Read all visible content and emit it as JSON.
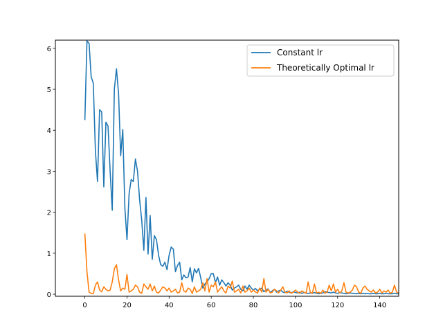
{
  "chart_data": {
    "type": "line",
    "title": "",
    "xlabel": "",
    "ylabel": "",
    "xlim": [
      -14,
      149
    ],
    "ylim": [
      -0.05,
      6.2
    ],
    "xticks": [
      0,
      20,
      40,
      60,
      80,
      100,
      120,
      140
    ],
    "yticks": [
      0,
      1,
      2,
      3,
      4,
      5,
      6
    ],
    "xtick_labels": [
      "0",
      "20",
      "40",
      "60",
      "80",
      "100",
      "120",
      "140"
    ],
    "ytick_labels": [
      "0",
      "1",
      "2",
      "3",
      "4",
      "5",
      "6"
    ],
    "grid": false,
    "legend": {
      "position": "top-right",
      "entries": [
        "Constant lr",
        "Theoretically Optimal lr"
      ]
    },
    "series": [
      {
        "name": "Constant lr",
        "color": "#1f77b4",
        "x": [
          0,
          1,
          2,
          3,
          4,
          5,
          6,
          7,
          8,
          9,
          10,
          11,
          12,
          13,
          14,
          15,
          16,
          17,
          18,
          19,
          20,
          21,
          22,
          23,
          24,
          25,
          26,
          27,
          28,
          29,
          30,
          31,
          32,
          33,
          34,
          35,
          36,
          37,
          38,
          39,
          40,
          41,
          42,
          43,
          44,
          45,
          46,
          47,
          48,
          49,
          50,
          51,
          52,
          53,
          54,
          55,
          56,
          57,
          58,
          59,
          60,
          61,
          62,
          63,
          64,
          65,
          66,
          67,
          68,
          69,
          70,
          71,
          72,
          73,
          74,
          75,
          76,
          77,
          78,
          79,
          80,
          81,
          82,
          83,
          84,
          85,
          86,
          87,
          88,
          89,
          90,
          91,
          92,
          93,
          94,
          95,
          96,
          97,
          98,
          99,
          100,
          101,
          102,
          103,
          104,
          105,
          106,
          107,
          108,
          109,
          110,
          111,
          112,
          113,
          114,
          115,
          116,
          117,
          118,
          119,
          120,
          121,
          122,
          123,
          124,
          125,
          126,
          127,
          128,
          129,
          130,
          131,
          132,
          133,
          134,
          135,
          136,
          137,
          138,
          139,
          140,
          141,
          142,
          143,
          144,
          145,
          146,
          147,
          148,
          149
        ],
        "y": [
          4.25,
          6.18,
          6.12,
          5.3,
          5.15,
          3.5,
          2.75,
          4.5,
          4.45,
          2.62,
          4.2,
          4.1,
          3.0,
          2.05,
          5.0,
          5.5,
          4.9,
          3.38,
          4.02,
          2.1,
          1.33,
          2.45,
          2.8,
          2.75,
          3.3,
          3.0,
          2.3,
          1.8,
          1.07,
          2.36,
          0.98,
          1.92,
          0.85,
          1.43,
          1.33,
          0.95,
          0.72,
          0.68,
          0.78,
          0.6,
          0.95,
          1.15,
          1.1,
          0.55,
          0.7,
          0.78,
          0.35,
          0.47,
          0.4,
          0.42,
          0.65,
          0.3,
          0.62,
          0.52,
          0.63,
          0.4,
          0.15,
          0.25,
          0.3,
          0.38,
          0.5,
          0.5,
          0.28,
          0.42,
          0.22,
          0.35,
          0.28,
          0.2,
          0.28,
          0.22,
          0.1,
          0.15,
          0.18,
          0.22,
          0.12,
          0.08,
          0.2,
          0.12,
          0.22,
          0.15,
          0.1,
          0.14,
          0.08,
          0.12,
          0.15,
          0.06,
          0.1,
          0.13,
          0.04,
          0.08,
          0.12,
          0.05,
          0.08,
          0.1,
          0.05,
          0.04,
          0.07,
          0.05,
          0.03,
          0.06,
          0.04,
          0.03,
          0.05,
          0.02,
          0.04,
          0.03,
          0.02,
          0.03,
          0.02,
          0.04,
          0.02,
          0.01,
          0.02,
          0.03,
          0.06,
          0.05,
          0.04,
          0.03,
          0.05,
          0.03,
          0.02,
          0.04,
          0.03,
          0.02,
          0.01,
          0.02,
          0.03,
          0.02,
          0.02,
          0.01,
          0.02,
          0.01,
          0.02,
          0.01,
          0.02,
          0.01,
          0.01,
          0.02,
          0.01,
          0.01,
          0.02,
          0.01,
          0.01,
          0.02,
          0.01,
          0.01,
          0.01,
          0.02,
          0.01,
          0.01
        ]
      },
      {
        "name": "Theoretically Optimal lr",
        "color": "#ff7f0e",
        "x": [
          0,
          1,
          2,
          3,
          4,
          5,
          6,
          7,
          8,
          9,
          10,
          11,
          12,
          13,
          14,
          15,
          16,
          17,
          18,
          19,
          20,
          21,
          22,
          23,
          24,
          25,
          26,
          27,
          28,
          29,
          30,
          31,
          32,
          33,
          34,
          35,
          36,
          37,
          38,
          39,
          40,
          41,
          42,
          43,
          44,
          45,
          46,
          47,
          48,
          49,
          50,
          51,
          52,
          53,
          54,
          55,
          56,
          57,
          58,
          59,
          60,
          61,
          62,
          63,
          64,
          65,
          66,
          67,
          68,
          69,
          70,
          71,
          72,
          73,
          74,
          75,
          76,
          77,
          78,
          79,
          80,
          81,
          82,
          83,
          84,
          85,
          86,
          87,
          88,
          89,
          90,
          91,
          92,
          93,
          94,
          95,
          96,
          97,
          98,
          99,
          100,
          101,
          102,
          103,
          104,
          105,
          106,
          107,
          108,
          109,
          110,
          111,
          112,
          113,
          114,
          115,
          116,
          117,
          118,
          119,
          120,
          121,
          122,
          123,
          124,
          125,
          126,
          127,
          128,
          129,
          130,
          131,
          132,
          133,
          134,
          135,
          136,
          137,
          138,
          139,
          140,
          141,
          142,
          143,
          144,
          145,
          146,
          147,
          148,
          149
        ],
        "y": [
          1.48,
          0.55,
          0.05,
          0.02,
          0.01,
          0.22,
          0.3,
          0.1,
          0.06,
          0.18,
          0.12,
          0.08,
          0.1,
          0.3,
          0.62,
          0.72,
          0.35,
          0.08,
          0.15,
          0.12,
          0.48,
          0.05,
          0.08,
          0.12,
          0.22,
          0.18,
          0.05,
          0.02,
          0.25,
          0.18,
          0.12,
          0.25,
          0.08,
          0.2,
          0.05,
          0.03,
          0.1,
          0.18,
          0.15,
          0.08,
          0.15,
          0.05,
          0.08,
          0.12,
          0.03,
          0.05,
          0.28,
          0.08,
          0.05,
          0.15,
          0.12,
          0.02,
          0.18,
          0.05,
          0.08,
          0.12,
          0.28,
          0.08,
          0.38,
          0.05,
          0.22,
          0.18,
          0.3,
          0.05,
          0.12,
          0.18,
          0.08,
          0.03,
          0.2,
          0.15,
          0.32,
          0.05,
          0.08,
          0.12,
          0.03,
          0.2,
          0.05,
          0.08,
          0.15,
          0.05,
          0.1,
          0.05,
          0.03,
          0.15,
          0.05,
          0.38,
          0.05,
          0.12,
          0.03,
          0.05,
          0.12,
          0.08,
          0.03,
          0.1,
          0.18,
          0.05,
          0.03,
          0.08,
          0.02,
          0.05,
          0.1,
          0.05,
          0.02,
          0.08,
          0.05,
          0.02,
          0.3,
          0.05,
          0.02,
          0.25,
          0.03,
          0.05,
          0.02,
          0.1,
          0.02,
          0.05,
          0.22,
          0.08,
          0.25,
          0.05,
          0.12,
          0.03,
          0.08,
          0.28,
          0.05,
          0.03,
          0.05,
          0.1,
          0.22,
          0.18,
          0.05,
          0.02,
          0.15,
          0.2,
          0.12,
          0.08,
          0.05,
          0.1,
          0.03,
          0.05,
          0.12,
          0.03,
          0.08,
          0.05,
          0.1,
          0.02,
          0.05,
          0.22,
          0.05,
          0.03
        ]
      }
    ]
  }
}
